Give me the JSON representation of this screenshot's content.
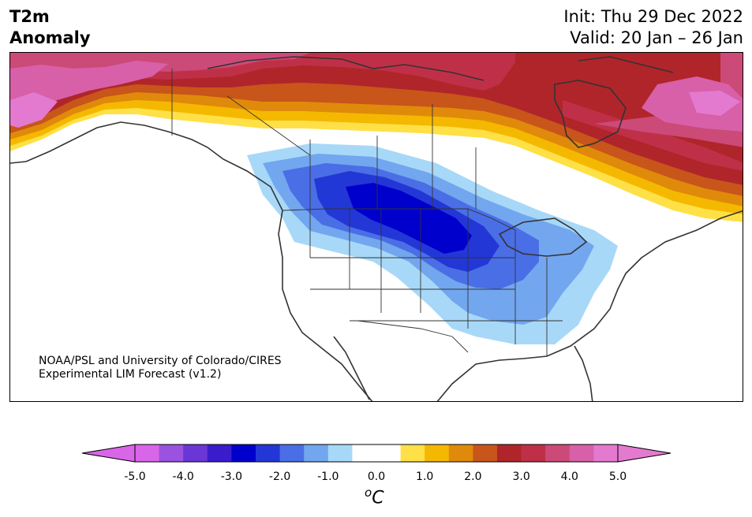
{
  "title": {
    "left_line1": "T2m",
    "left_line2": "Anomaly",
    "right_line1": "Init: Thu 29 Dec 2022",
    "right_line2": "Valid: 20 Jan – 26 Jan"
  },
  "credit": {
    "line1": "NOAA/PSL and University of Colorado/CIRES",
    "line2": "Experimental LIM Forecast (v1.2)"
  },
  "colorbar": {
    "ticks": [
      "-5.0",
      "-4.0",
      "-3.0",
      "-2.0",
      "-1.0",
      "0.0",
      "1.0",
      "2.0",
      "3.0",
      "4.0",
      "5.0"
    ],
    "unit_base": "C",
    "unit_sup": "o",
    "colors": [
      "#d966e8",
      "#9b52e0",
      "#6a36d6",
      "#3a1ccc",
      "#0000cc",
      "#2337d6",
      "#4a6ee6",
      "#72a6ee",
      "#a8d8f8",
      "#ffffff",
      "#ffffff",
      "#ffe047",
      "#f5b800",
      "#e08a0b",
      "#c8551a",
      "#b0252a",
      "#bf3048",
      "#cc4a78",
      "#d860a8",
      "#e37ad0"
    ],
    "under_color": "#d966e8",
    "over_color": "#e37ad0"
  },
  "map": {
    "region": "North America",
    "field": "2m temperature anomaly",
    "ocean_color": "#ffffff",
    "coast_color": "#333333"
  }
}
